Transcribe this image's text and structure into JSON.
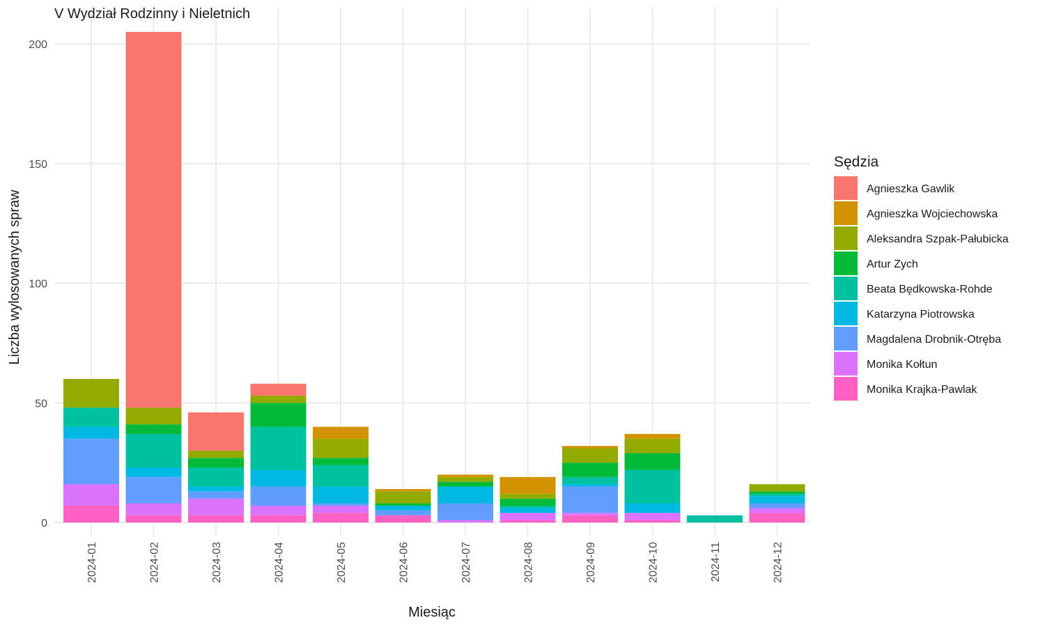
{
  "chart_data": {
    "type": "bar",
    "stacked": true,
    "title": "V Wydział Rodzinny i Nieletnich",
    "xlabel": "Miesiąc",
    "ylabel": "Liczba wylosowanych spraw",
    "ylim": [
      0,
      210
    ],
    "yticks": [
      0,
      50,
      100,
      150,
      200
    ],
    "grid": true,
    "legend_title": "Sędzia",
    "legend_position": "right",
    "categories": [
      "2024-01",
      "2024-02",
      "2024-03",
      "2024-04",
      "2024-05",
      "2024-06",
      "2024-07",
      "2024-08",
      "2024-09",
      "2024-10",
      "2024-11",
      "2024-12"
    ],
    "series": [
      {
        "name": "Monika Krajka-Pawlak",
        "color": "#FF61C3",
        "values": [
          7,
          3,
          3,
          3,
          4,
          3,
          0,
          1,
          3,
          1,
          0,
          4
        ]
      },
      {
        "name": "Monika Kołtun",
        "color": "#DB72FB",
        "values": [
          9,
          5,
          7,
          4,
          3,
          0,
          1,
          3,
          1,
          3,
          0,
          2
        ]
      },
      {
        "name": "Magdalena Drobnik-Otręba",
        "color": "#619CFF",
        "values": [
          19,
          11,
          3,
          8,
          1,
          2,
          7,
          0,
          11,
          0,
          0,
          2
        ]
      },
      {
        "name": "Katarzyna Piotrowska",
        "color": "#00B9E3",
        "values": [
          5,
          4,
          2,
          7,
          7,
          2,
          7,
          2,
          1,
          4,
          0,
          3
        ]
      },
      {
        "name": "Beata Będkowska-Rohde",
        "color": "#00C19F",
        "values": [
          8,
          14,
          8,
          18,
          9,
          0,
          0,
          1,
          3,
          14,
          3,
          1
        ]
      },
      {
        "name": "Artur Zych",
        "color": "#00BA38",
        "values": [
          0,
          4,
          4,
          10,
          3,
          1,
          2,
          3,
          6,
          7,
          0,
          1
        ]
      },
      {
        "name": "Aleksandra Szpak-Pałubicka",
        "color": "#93AA00",
        "values": [
          12,
          7,
          3,
          3,
          8,
          5,
          2,
          2,
          6,
          6,
          0,
          3
        ]
      },
      {
        "name": "Agnieszka Wojciechowska",
        "color": "#D39200",
        "values": [
          0,
          0,
          0,
          0,
          5,
          1,
          1,
          7,
          1,
          2,
          0,
          0
        ]
      },
      {
        "name": "Agnieszka Gawlik",
        "color": "#F8766D",
        "values": [
          0,
          157,
          16,
          5,
          0,
          0,
          0,
          0,
          0,
          0,
          0,
          0
        ]
      }
    ],
    "legend_order": [
      "Agnieszka Gawlik",
      "Agnieszka Wojciechowska",
      "Aleksandra Szpak-Pałubicka",
      "Artur Zych",
      "Beata Będkowska-Rohde",
      "Katarzyna Piotrowska",
      "Magdalena Drobnik-Otręba",
      "Monika Kołtun",
      "Monika Krajka-Pawlak"
    ]
  }
}
